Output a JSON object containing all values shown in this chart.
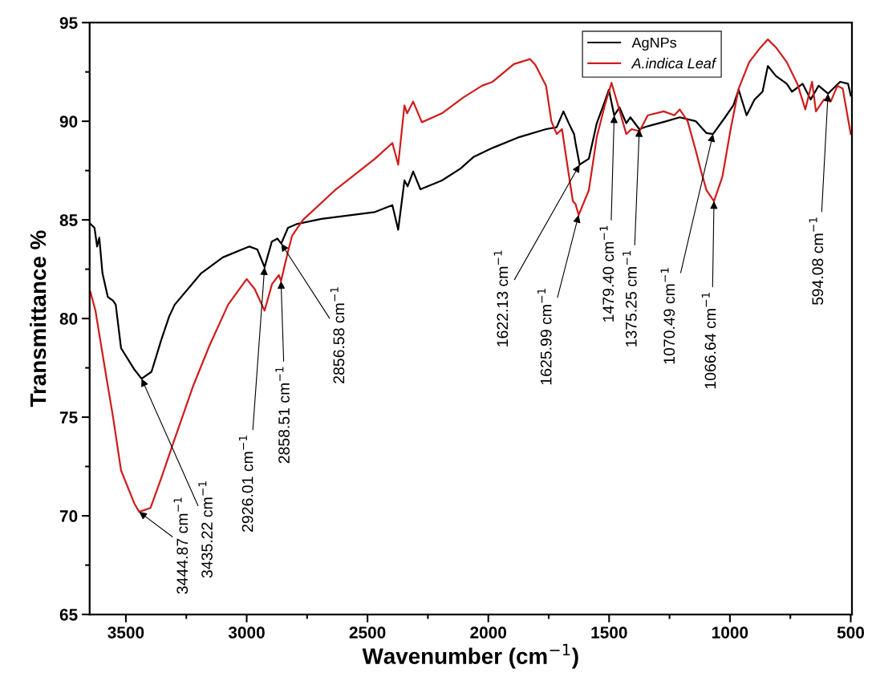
{
  "chart_data": {
    "type": "line",
    "xlabel": "Wavenumber (cm$^{−1}$)",
    "ylabel": "Transmittance %",
    "xlim": [
      3650,
      495
    ],
    "xticks": [
      3500,
      3000,
      2500,
      2000,
      1500,
      1000,
      500
    ],
    "ylim": [
      65,
      95
    ],
    "yticks": [
      65,
      70,
      75,
      80,
      85,
      90,
      95
    ],
    "legend": "top right",
    "grid": false,
    "marker": "none",
    "line_style": "solid",
    "series": [
      {
        "name": "AgNPs",
        "color": "#000000",
        "x": [
          3647,
          3630,
          3619,
          3610,
          3597,
          3575,
          3553,
          3542,
          3520,
          3464,
          3435,
          3394,
          3354,
          3321,
          3298,
          3188,
          3099,
          2989,
          2956,
          2926,
          2896,
          2873,
          2857,
          2829,
          2790,
          2690,
          2469,
          2397,
          2373,
          2347,
          2334,
          2311,
          2281,
          2192,
          2115,
          2060,
          1982,
          1871,
          1761,
          1717,
          1689,
          1667,
          1645,
          1639,
          1622,
          1584,
          1551,
          1518,
          1501,
          1479,
          1457,
          1429,
          1412,
          1375,
          1340,
          1263,
          1208,
          1141,
          1097,
          1070,
          1020,
          986,
          964,
          931,
          898,
          865,
          843,
          810,
          765,
          743,
          699,
          666,
          633,
          594,
          544,
          511,
          500
        ],
        "values": [
          84.8,
          84.6,
          83.65,
          84.1,
          82.3,
          81.1,
          80.9,
          80.7,
          78.5,
          77.4,
          76.95,
          77.3,
          78.9,
          80.1,
          80.7,
          82.3,
          83.1,
          83.65,
          83.5,
          82.6,
          83.9,
          84.05,
          83.8,
          84.6,
          84.8,
          85.05,
          85.4,
          85.75,
          84.5,
          87.0,
          86.7,
          87.45,
          86.55,
          87.0,
          87.6,
          88.2,
          88.65,
          89.2,
          89.6,
          89.7,
          90.5,
          89.9,
          89.35,
          88.9,
          87.8,
          88.1,
          89.9,
          91.0,
          91.6,
          90.3,
          90.7,
          89.9,
          90.2,
          89.6,
          89.75,
          90.0,
          90.2,
          90.0,
          89.4,
          89.35,
          90.2,
          90.8,
          91.6,
          90.3,
          91.1,
          91.5,
          92.8,
          92.3,
          91.9,
          91.5,
          91.9,
          91.1,
          91.8,
          91.4,
          92.0,
          91.9,
          91.3
        ]
      },
      {
        "name": "A.indica Leaf",
        "color": "#d01c1c",
        "x": [
          3647,
          3626,
          3608,
          3575,
          3553,
          3520,
          3464,
          3445,
          3398,
          3354,
          3298,
          3221,
          3155,
          3077,
          3000,
          2967,
          2926,
          2895,
          2867,
          2858,
          2829,
          2812,
          2767,
          2635,
          2469,
          2397,
          2373,
          2347,
          2336,
          2311,
          2275,
          2192,
          2104,
          2026,
          1982,
          1894,
          1827,
          1805,
          1761,
          1739,
          1717,
          1695,
          1672,
          1650,
          1639,
          1626,
          1584,
          1551,
          1518,
          1490,
          1463,
          1429,
          1407,
          1374,
          1340,
          1274,
          1230,
          1208,
          1175,
          1141,
          1119,
          1097,
          1066,
          1031,
          997,
          964,
          920,
          876,
          843,
          810,
          765,
          721,
          688,
          660,
          644,
          611,
          583,
          555,
          533,
          500
        ],
        "values": [
          81.35,
          80.4,
          79.05,
          76.6,
          75.0,
          72.3,
          70.6,
          70.2,
          70.4,
          71.9,
          73.9,
          76.6,
          78.6,
          80.7,
          82.0,
          81.5,
          80.4,
          81.75,
          82.2,
          81.9,
          83.4,
          84.2,
          85.0,
          86.5,
          88.1,
          88.9,
          87.8,
          90.8,
          90.4,
          91.0,
          89.95,
          90.4,
          91.2,
          91.8,
          92.0,
          92.9,
          93.15,
          92.85,
          91.8,
          90.0,
          89.35,
          89.6,
          87.7,
          85.95,
          85.8,
          85.25,
          86.5,
          89.2,
          90.8,
          91.95,
          90.8,
          89.35,
          89.6,
          89.5,
          90.3,
          90.5,
          90.3,
          90.6,
          90.0,
          88.5,
          87.45,
          86.5,
          85.95,
          87.2,
          89.6,
          91.65,
          93.0,
          93.7,
          94.15,
          93.75,
          93.0,
          91.9,
          90.6,
          92.0,
          90.5,
          91.1,
          91.0,
          91.8,
          91.65,
          89.35
        ]
      }
    ],
    "annotations": [
      {
        "text": "3444.87 cm$^{−1}$",
        "x": 3445,
        "y": 70.2
      },
      {
        "text": "3435.22 cm$^{−1}$",
        "x": 3435,
        "y": 76.95
      },
      {
        "text": "2926.01 cm$^{−1}$",
        "x": 2926,
        "y": 82.6
      },
      {
        "text": "2858.51 cm$^{−1}$",
        "x": 2858,
        "y": 81.9
      },
      {
        "text": "2856.58 cm$^{−1}$",
        "x": 2857,
        "y": 83.8
      },
      {
        "text": "1622.13 cm$^{−1}$",
        "x": 1622,
        "y": 87.8
      },
      {
        "text": "1625.99 cm$^{−1}$",
        "x": 1626,
        "y": 85.25
      },
      {
        "text": "1479.40 cm$^{−1}$",
        "x": 1479,
        "y": 90.3
      },
      {
        "text": "1375.25 cm$^{−1}$",
        "x": 1375,
        "y": 89.6
      },
      {
        "text": "1070.49 cm$^{−1}$",
        "x": 1070,
        "y": 89.35
      },
      {
        "text": "1066.64 cm$^{−1}$",
        "x": 1066,
        "y": 85.95
      },
      {
        "text": "594.08 cm$^{−1}$",
        "x": 594,
        "y": 91.4
      }
    ]
  }
}
